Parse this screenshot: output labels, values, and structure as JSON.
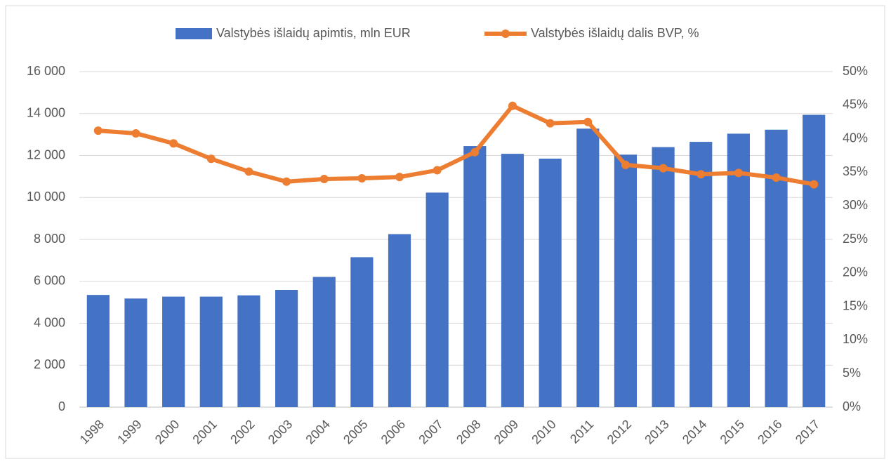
{
  "chart_data": {
    "type": "bar_line",
    "categories": [
      "1998",
      "1999",
      "2000",
      "2001",
      "2002",
      "2003",
      "2004",
      "2005",
      "2006",
      "2007",
      "2008",
      "2009",
      "2010",
      "2011",
      "2012",
      "2013",
      "2014",
      "2015",
      "2016",
      "2017"
    ],
    "series": [
      {
        "name": "Valstybės išlaidų apimtis, mln EUR",
        "type": "bar",
        "color": "#4472c4",
        "values": [
          5350,
          5180,
          5270,
          5270,
          5330,
          5590,
          6210,
          7150,
          8250,
          10230,
          12450,
          12080,
          11850,
          13280,
          12040,
          12400,
          12650,
          13040,
          13230,
          13940
        ]
      },
      {
        "name": "Valstybės išlaidų dalis BVP, %",
        "type": "line",
        "axis": "y2",
        "color": "#ed7d31",
        "values": [
          41.2,
          40.8,
          39.3,
          37.0,
          35.1,
          33.6,
          34.0,
          34.1,
          34.3,
          35.3,
          38.0,
          44.9,
          42.3,
          42.5,
          36.1,
          35.6,
          34.7,
          34.9,
          34.2,
          33.2
        ]
      }
    ],
    "ylim": [
      0,
      16000
    ],
    "yticks": [
      0,
      {
        "value": 2000,
        "label": "2 000"
      },
      {
        "value": 4000,
        "label": "4 000"
      },
      {
        "value": 6000,
        "label": "6 000"
      },
      {
        "value": 8000,
        "label": "8 000"
      },
      {
        "value": 10000,
        "label": "10 000"
      },
      {
        "value": 12000,
        "label": "12 000"
      },
      {
        "value": 14000,
        "label": "14 000"
      },
      {
        "value": 16000,
        "label": "16 000"
      }
    ],
    "y2lim": [
      0,
      50
    ],
    "y2ticks": [
      {
        "value": 0,
        "label": "0%"
      },
      {
        "value": 5,
        "label": "5%"
      },
      {
        "value": 10,
        "label": "10%"
      },
      {
        "value": 15,
        "label": "15%"
      },
      {
        "value": 20,
        "label": "20%"
      },
      {
        "value": 25,
        "label": "25%"
      },
      {
        "value": 30,
        "label": "30%"
      },
      {
        "value": 35,
        "label": "35%"
      },
      {
        "value": 40,
        "label": "40%"
      },
      {
        "value": 45,
        "label": "45%"
      },
      {
        "value": 50,
        "label": "50%"
      }
    ],
    "grid": true,
    "legend": "top"
  }
}
